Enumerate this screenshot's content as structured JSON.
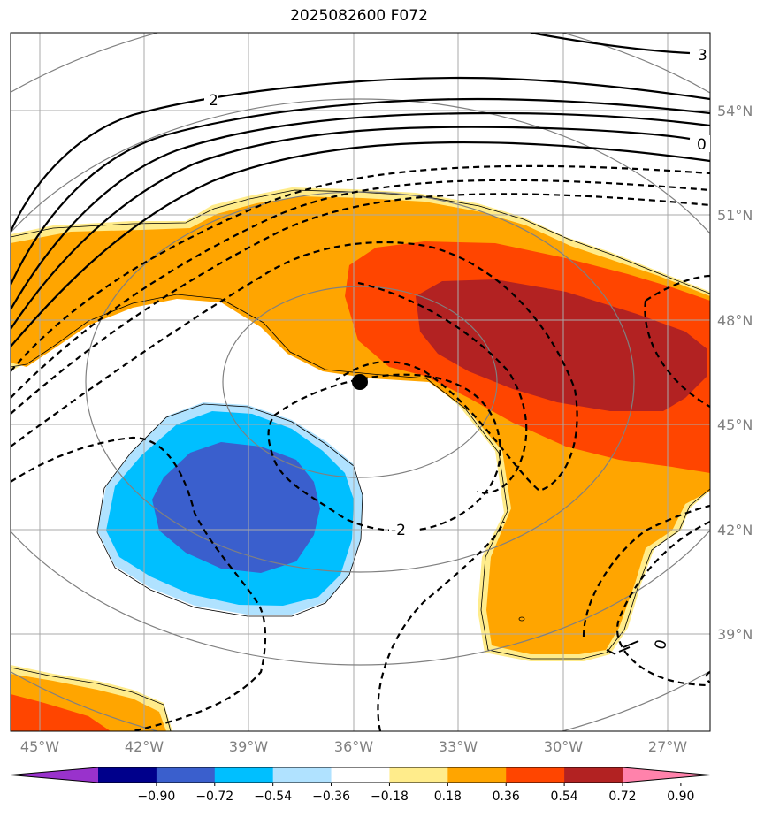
{
  "title": "2025082600 F072",
  "map": {
    "longitude_labels": [
      "45°W",
      "42°W",
      "39°W",
      "36°W",
      "33°W",
      "30°W",
      "27°W"
    ],
    "latitude_labels": [
      "54°N",
      "51°N",
      "48°N",
      "45°N",
      "42°N",
      "39°N"
    ],
    "contour_labels": {
      "top_right": "3",
      "upper_left": "2",
      "right": "0",
      "center_dashed": "-2",
      "bottom_right": "0"
    },
    "center_marker": "black-dot"
  },
  "colorbar": {
    "tick_labels": [
      "−0.90",
      "−0.72",
      "−0.54",
      "−0.36",
      "−0.18",
      "0.18",
      "0.36",
      "0.54",
      "0.72",
      "0.90"
    ],
    "colors": [
      "#9932cc",
      "#00008b",
      "#3a5fcd",
      "#00bfff",
      "#b0e2ff",
      "#ffffff",
      "#ffec8b",
      "#ffa500",
      "#ff4500",
      "#b22222",
      "#ff82ab"
    ]
  }
}
